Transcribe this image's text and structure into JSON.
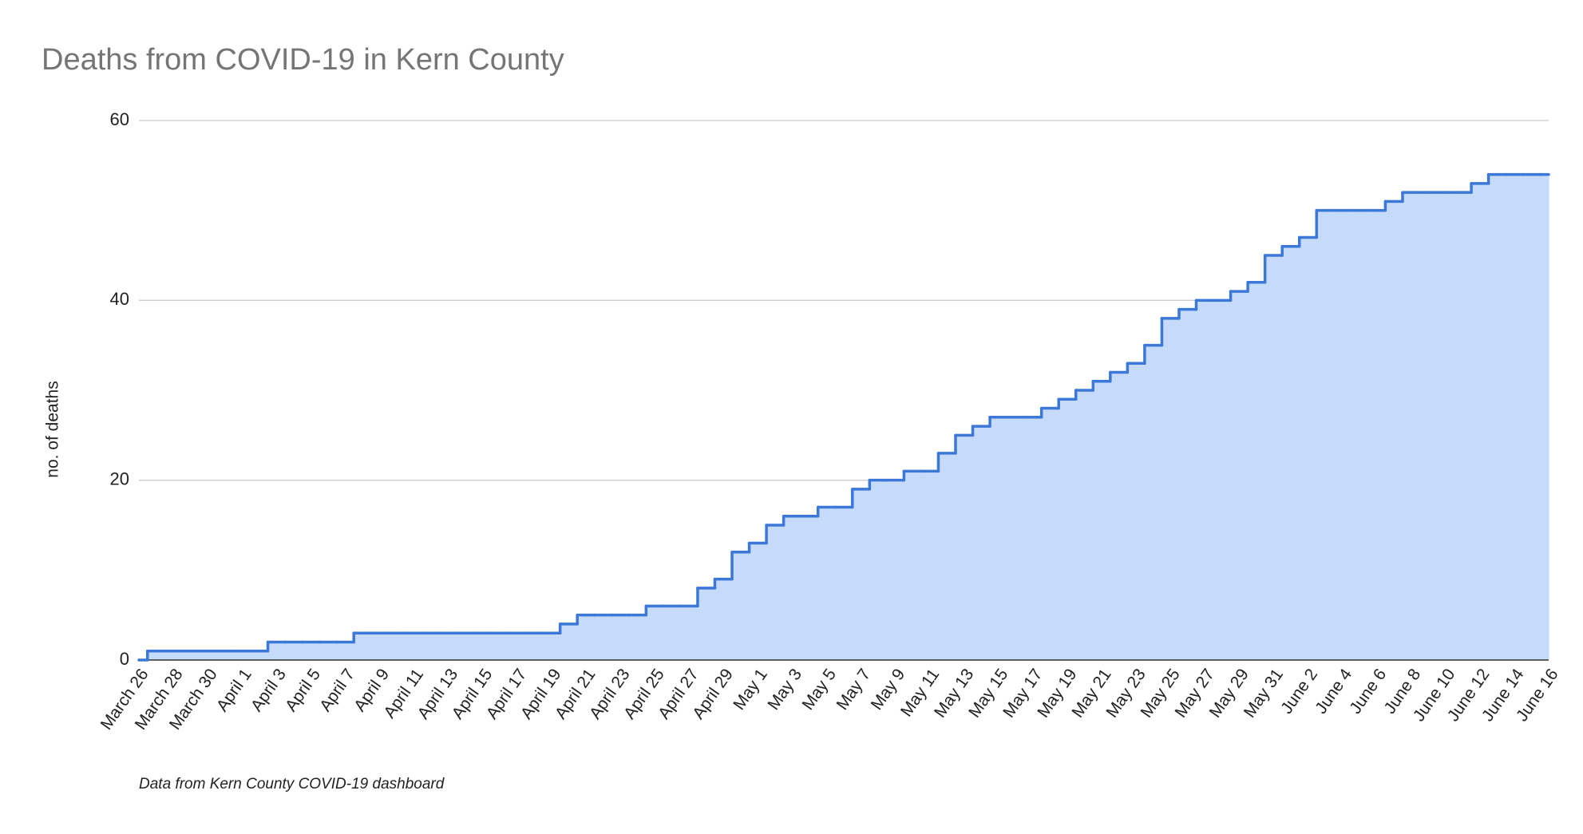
{
  "chart_data": {
    "type": "area",
    "step": true,
    "title": "Deaths from COVID-19 in Kern County",
    "y_label": "no. of deaths",
    "note": "Data from Kern County COVID-19 dashboard",
    "categories": [
      "March 26",
      null,
      "March 28",
      null,
      "March 30",
      null,
      "April 1",
      null,
      "April 3",
      null,
      "April 5",
      null,
      "April 7",
      null,
      "April 9",
      null,
      "April 11",
      null,
      "April 13",
      null,
      "April 15",
      null,
      "April 17",
      null,
      "April 19",
      null,
      "April 21",
      null,
      "April 23",
      null,
      "April 25",
      null,
      "April 27",
      null,
      "April 29",
      null,
      "May 1",
      null,
      "May 3",
      null,
      "May 5",
      null,
      "May 7",
      null,
      "May 9",
      null,
      "May 11",
      null,
      "May 13",
      null,
      "May 15",
      null,
      "May 17",
      null,
      "May 19",
      null,
      "May 21",
      null,
      "May 23",
      null,
      "May 25",
      null,
      "May 27",
      null,
      "May 29",
      null,
      "May 31",
      null,
      "June 2",
      null,
      "June 4",
      null,
      "June 6",
      null,
      "June 8",
      null,
      "June 10",
      null,
      "June 12",
      null,
      "June 14",
      null,
      "June 16"
    ],
    "values": [
      0,
      1,
      1,
      1,
      1,
      1,
      1,
      1,
      2,
      2,
      2,
      2,
      2,
      3,
      3,
      3,
      3,
      3,
      3,
      3,
      3,
      3,
      3,
      3,
      3,
      4,
      5,
      5,
      5,
      5,
      6,
      6,
      6,
      8,
      9,
      12,
      13,
      15,
      16,
      16,
      17,
      17,
      19,
      20,
      20,
      21,
      21,
      23,
      25,
      26,
      27,
      27,
      27,
      28,
      29,
      30,
      31,
      32,
      33,
      35,
      38,
      39,
      40,
      40,
      41,
      42,
      45,
      46,
      47,
      50,
      50,
      50,
      50,
      51,
      52,
      52,
      52,
      52,
      53,
      54,
      54,
      54,
      54
    ],
    "color": "#3c78d8",
    "fill_color": "#c6dafa",
    "ylim": [
      0,
      60
    ],
    "yticks": [
      0,
      20,
      40,
      60
    ],
    "grid": true
  }
}
